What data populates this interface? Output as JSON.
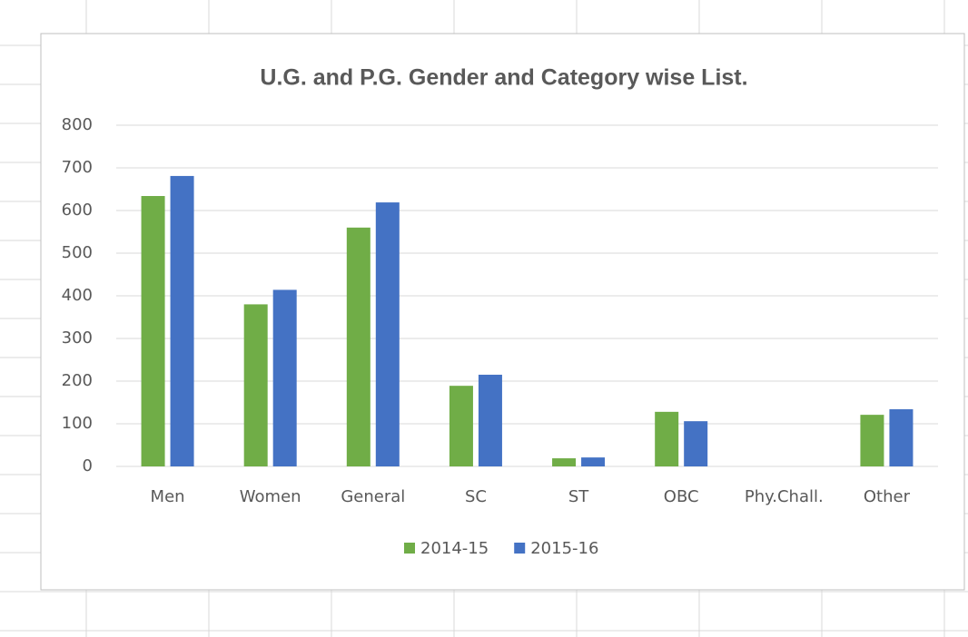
{
  "chart_data": {
    "type": "bar",
    "title": "U.G. and P.G. Gender and Category wise List.",
    "categories": [
      "Men",
      "Women",
      "General",
      "SC",
      "ST",
      "OBC",
      "Phy.Chall.",
      "Other"
    ],
    "series": [
      {
        "name": "2014-15",
        "color": "#70ad47",
        "values": [
          634,
          380,
          560,
          189,
          19,
          128,
          0,
          121
        ]
      },
      {
        "name": "2015-16",
        "color": "#4472c4",
        "values": [
          681,
          414,
          619,
          215,
          21,
          106,
          0,
          134
        ]
      }
    ],
    "ylim": [
      0,
      800
    ],
    "yticks": [
      0,
      100,
      200,
      300,
      400,
      500,
      600,
      700,
      800
    ],
    "grid": true,
    "legend": "bottom"
  }
}
